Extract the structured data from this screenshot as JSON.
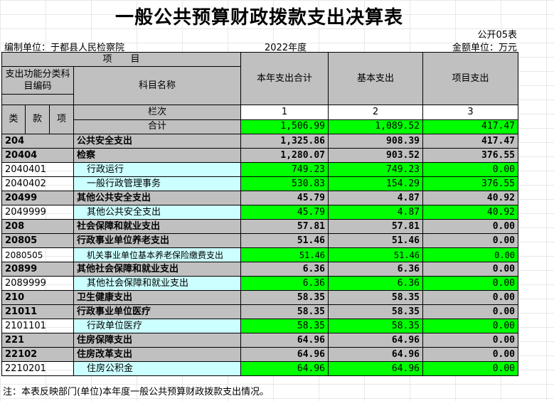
{
  "title": "一般公共预算财政拨款支出决算表",
  "form_code": "公开05表",
  "unit_label": "编制单位：于都县人民检察院",
  "year": "2022年度",
  "currency": "金额单位：万元",
  "header": {
    "item": "项　　目",
    "code": "支出功能分类科目编码",
    "name": "科目名称",
    "total": "本年支出合计",
    "basic": "基本支出",
    "project": "项目支出",
    "lei": "类",
    "kuan": "款",
    "xiang": "项",
    "lanci": "栏次",
    "col1": "1",
    "col2": "2",
    "col3": "3",
    "heji": "合计",
    "heji_total": "1,506.99",
    "heji_basic": "1,089.52",
    "heji_project": "417.47"
  },
  "rows": [
    {
      "code": "204",
      "name": "公共安全支出",
      "total": "1,325.86",
      "basic": "908.39",
      "project": "417.47",
      "level": 1
    },
    {
      "code": "20404",
      "name": "检察",
      "total": "1,280.07",
      "basic": "903.52",
      "project": "376.55",
      "level": 2
    },
    {
      "code": "2040401",
      "name": "行政运行",
      "total": "749.23",
      "basic": "749.23",
      "project": "0.00",
      "level": 3
    },
    {
      "code": "2040402",
      "name": "一般行政管理事务",
      "total": "530.83",
      "basic": "154.29",
      "project": "376.55",
      "level": 3
    },
    {
      "code": "20499",
      "name": "其他公共安全支出",
      "total": "45.79",
      "basic": "4.87",
      "project": "40.92",
      "level": 2
    },
    {
      "code": "2049999",
      "name": "其他公共安全支出",
      "total": "45.79",
      "basic": "4.87",
      "project": "40.92",
      "level": 3
    },
    {
      "code": "208",
      "name": "社会保障和就业支出",
      "total": "57.81",
      "basic": "57.81",
      "project": "0.00",
      "level": 1
    },
    {
      "code": "20805",
      "name": "行政事业单位养老支出",
      "total": "51.46",
      "basic": "51.46",
      "project": "0.00",
      "level": 2
    },
    {
      "code": "2080505",
      "name": "机关事业单位基本养老保险缴费支出",
      "total": "51.46",
      "basic": "51.46",
      "project": "0.00",
      "level": 3
    },
    {
      "code": "20899",
      "name": "其他社会保障和就业支出",
      "total": "6.36",
      "basic": "6.36",
      "project": "0.00",
      "level": 2
    },
    {
      "code": "2089999",
      "name": "其他社会保障和就业支出",
      "total": "6.36",
      "basic": "6.36",
      "project": "0.00",
      "level": 3
    },
    {
      "code": "210",
      "name": "卫生健康支出",
      "total": "58.35",
      "basic": "58.35",
      "project": "0.00",
      "level": 1
    },
    {
      "code": "21011",
      "name": "行政事业单位医疗",
      "total": "58.35",
      "basic": "58.35",
      "project": "0.00",
      "level": 2
    },
    {
      "code": "2101101",
      "name": "行政单位医疗",
      "total": "58.35",
      "basic": "58.35",
      "project": "0.00",
      "level": 3
    },
    {
      "code": "221",
      "name": "住房保障支出",
      "total": "64.96",
      "basic": "64.96",
      "project": "0.00",
      "level": 1
    },
    {
      "code": "22102",
      "name": "住房改革支出",
      "total": "64.96",
      "basic": "64.96",
      "project": "0.00",
      "level": 2
    },
    {
      "code": "2210201",
      "name": "住房公积金",
      "total": "64.96",
      "basic": "64.96",
      "project": "0.00",
      "level": 3
    }
  ],
  "note": "注：本表反映部门(单位)本年度一般公共预算财政拨款支出情况。"
}
